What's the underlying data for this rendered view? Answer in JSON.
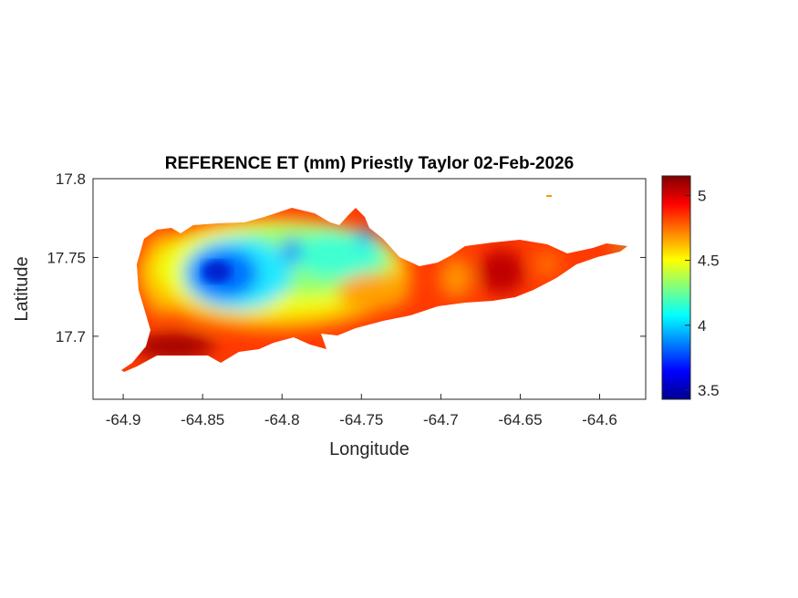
{
  "chart_data": {
    "type": "heatmap",
    "title": "REFERENCE ET (mm) Priestly Taylor 02-Feb-2026",
    "xlabel": "Longitude",
    "ylabel": "Latitude",
    "xlim": [
      -64.919,
      -64.571
    ],
    "ylim": [
      17.66,
      17.8
    ],
    "xticks": [
      -64.9,
      -64.85,
      -64.8,
      -64.75,
      -64.7,
      -64.65,
      -64.6
    ],
    "xtick_labels": [
      "-64.9",
      "-64.85",
      "-64.8",
      "-64.75",
      "-64.7",
      "-64.65",
      "-64.6"
    ],
    "yticks": [
      17.7,
      17.75,
      17.8
    ],
    "ytick_labels": [
      "17.7",
      "17.75",
      "17.8"
    ],
    "colorbar": {
      "colormap": "jet",
      "clim": [
        3.43,
        5.15
      ],
      "ticks": [
        3.5,
        4,
        4.5,
        5
      ],
      "tick_labels": [
        "3.5",
        "4",
        "4.5",
        "5"
      ]
    },
    "features": [
      {
        "name": "minimum ET region (central-west)",
        "lon": -64.84,
        "lat": 17.74,
        "value": 3.5
      },
      {
        "name": "low ET band (north-central)",
        "lon": -64.78,
        "lat": 17.745,
        "value": 4.1
      },
      {
        "name": "maximum ET (southwest coast)",
        "lon": -64.88,
        "lat": 17.695,
        "value": 5.1
      },
      {
        "name": "high ET (east)",
        "lon": -64.65,
        "lat": 17.74,
        "value": 5.05
      }
    ],
    "grid": false
  }
}
